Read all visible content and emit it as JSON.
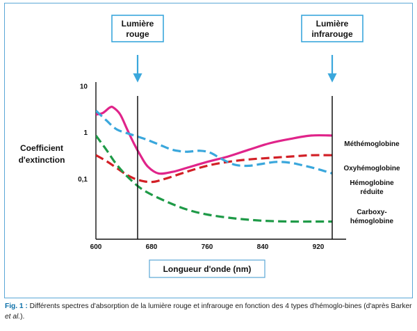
{
  "chart_data": {
    "type": "line",
    "x_scale": "linear",
    "y_scale": "log",
    "xlabel": "Longueur d'onde (nm)",
    "ylabel_lines": [
      "Coefficient",
      "d'extinction"
    ],
    "x_ticks": [
      600,
      680,
      760,
      840,
      920
    ],
    "xlim": [
      600,
      960
    ],
    "y_ticks": [
      {
        "value": 10,
        "label": "10"
      },
      {
        "value": 1,
        "label": "1"
      },
      {
        "value": 0.1,
        "label": "0,1"
      }
    ],
    "ylim": [
      0.005,
      12
    ],
    "callouts": [
      {
        "lines": [
          "Lumière",
          "rouge"
        ],
        "x": 660
      },
      {
        "lines": [
          "Lumière",
          "infrarouge"
        ],
        "x": 940
      }
    ],
    "series": [
      {
        "name": "Méthémoglobine",
        "color": "#e0248a",
        "dash": "solid",
        "x": [
          600,
          610,
          620,
          625,
          635,
          645,
          655,
          665,
          675,
          690,
          710,
          730,
          760,
          790,
          820,
          850,
          880,
          910,
          940
        ],
        "y": [
          2.4,
          2.6,
          3.4,
          3.4,
          2.4,
          1.15,
          0.56,
          0.3,
          0.18,
          0.13,
          0.14,
          0.17,
          0.23,
          0.3,
          0.42,
          0.58,
          0.72,
          0.85,
          0.85
        ]
      },
      {
        "name": "Oxyhémoglobine",
        "color": "#d21f26",
        "dash": "dashed",
        "x": [
          600,
          615,
          630,
          645,
          660,
          680,
          700,
          730,
          760,
          790,
          820,
          850,
          880,
          910,
          940
        ],
        "y": [
          0.32,
          0.24,
          0.17,
          0.12,
          0.095,
          0.085,
          0.1,
          0.14,
          0.19,
          0.23,
          0.26,
          0.28,
          0.3,
          0.32,
          0.32
        ]
      },
      {
        "name": "Hémoglobine réduite",
        "label_lines": [
          "Hémoglobine",
          "réduite"
        ],
        "color": "#3aa7dc",
        "dash": "dashed",
        "x": [
          600,
          615,
          630,
          650,
          670,
          690,
          710,
          730,
          750,
          765,
          780,
          800,
          820,
          840,
          860,
          880,
          900,
          920,
          940
        ],
        "y": [
          2.9,
          1.8,
          1.15,
          0.9,
          0.72,
          0.55,
          0.42,
          0.38,
          0.4,
          0.36,
          0.27,
          0.2,
          0.19,
          0.21,
          0.23,
          0.22,
          0.19,
          0.16,
          0.13
        ]
      },
      {
        "name": "Carboxyhémoglobine",
        "label_lines": [
          "Carboxy-",
          "hémoglobine"
        ],
        "color": "#1e9a47",
        "dash": "dashed",
        "x": [
          600,
          615,
          630,
          650,
          670,
          700,
          730,
          760,
          800,
          840,
          880,
          920,
          940
        ],
        "y": [
          0.85,
          0.42,
          0.2,
          0.095,
          0.055,
          0.033,
          0.022,
          0.017,
          0.014,
          0.0125,
          0.012,
          0.012,
          0.012
        ]
      }
    ],
    "caption": {
      "label": "Fig. 1 :",
      "text": "Différents spectres d'absorption de la lumière rouge et infrarouge en fonction des 4 types d'hémoglo-bines (d'après Barker ",
      "italic": "et al.",
      "end": ")."
    }
  }
}
